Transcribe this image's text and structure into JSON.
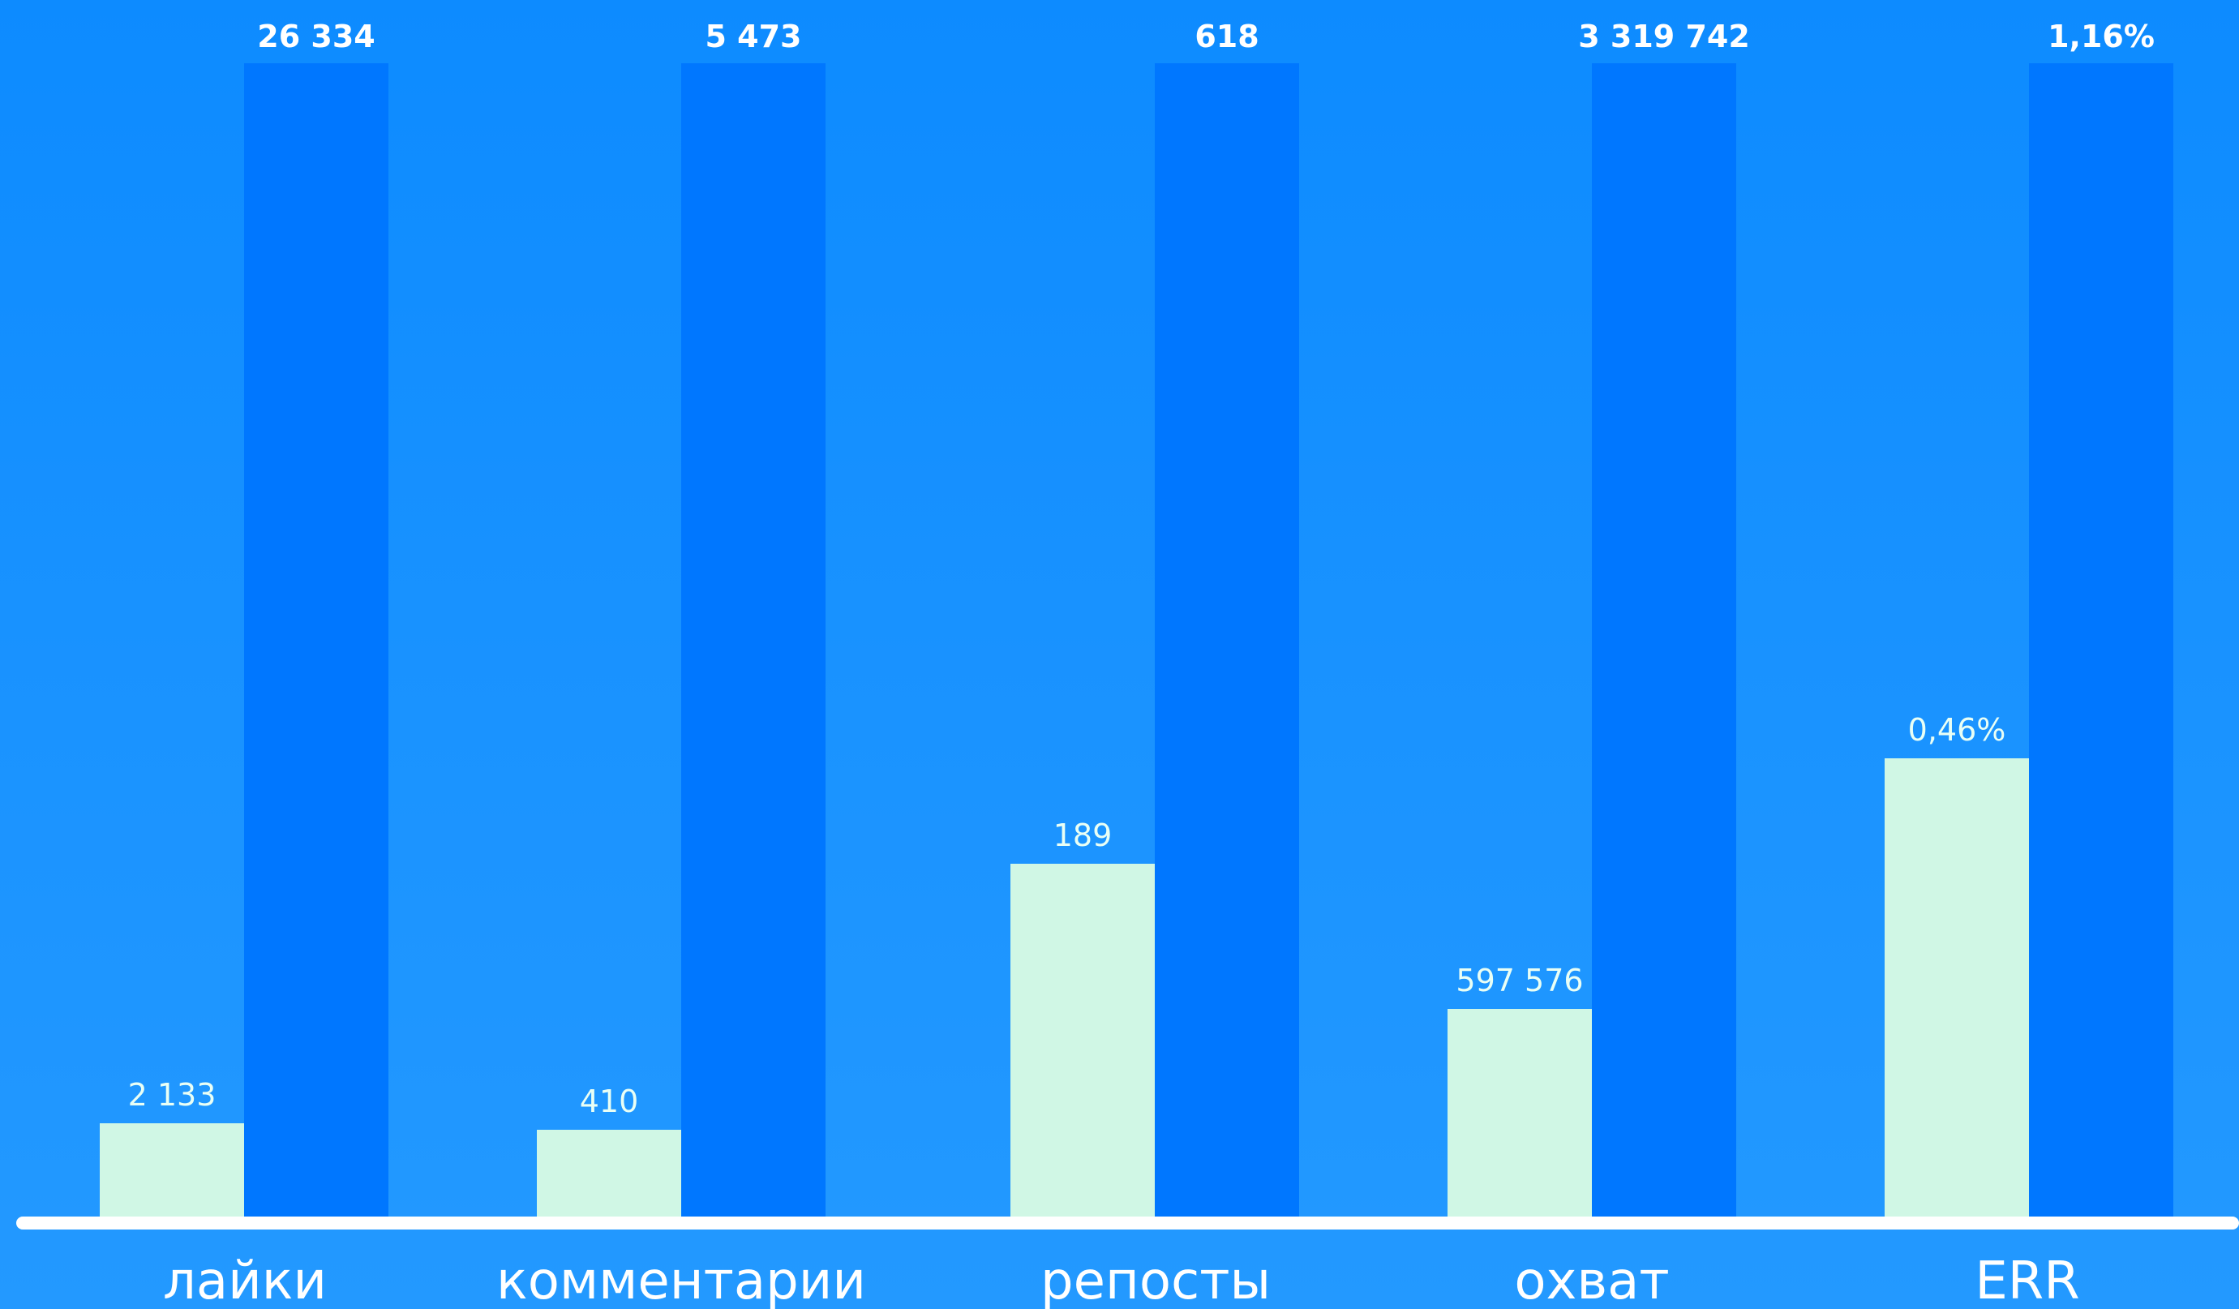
{
  "chart_data": {
    "type": "bar",
    "categories": [
      "лайки",
      "комментарии",
      "репосты",
      "охват",
      "ERR"
    ],
    "series": [
      {
        "values": [
          2133,
          410,
          189,
          597576,
          0.46
        ],
        "labels": [
          "2 133",
          "410",
          "189",
          "597 576",
          "0,46%"
        ],
        "relative_height": [
          0.081,
          0.075,
          0.306,
          0.18,
          0.397
        ],
        "color": "#d0f7e5"
      },
      {
        "values": [
          26334,
          5473,
          618,
          3319742,
          1.16
        ],
        "labels": [
          "26 334",
          "5 473",
          "618",
          "3 319 742",
          "1,16%"
        ],
        "relative_height": [
          1,
          1,
          1,
          1,
          1
        ],
        "color": "#0077ff"
      }
    ],
    "title": "",
    "xlabel": "",
    "ylabel": "",
    "grid": false,
    "legend": "none"
  },
  "colors": {
    "background": "#1a93ff",
    "baseline": "#ffffff"
  }
}
